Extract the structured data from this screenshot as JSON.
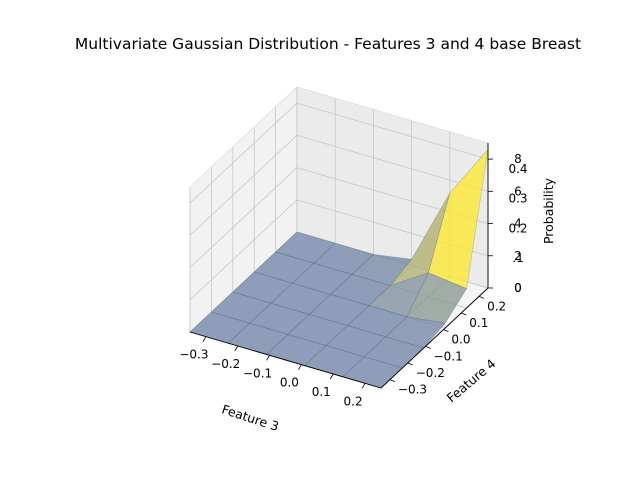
{
  "chart_data": {
    "type": "surface3d",
    "title": "Multivariate Gaussian Distribution - Features 3 and 4 base Breast",
    "xlabel": "Feature 3",
    "ylabel": "Feature 4",
    "zlabel": "Probability",
    "x_ticks": [
      "−0.3",
      "−0.2",
      "−0.1",
      "0.0",
      "0.1",
      "0.2"
    ],
    "y_ticks": [
      "−0.3",
      "−0.2",
      "−0.1",
      "0.0",
      "0.1",
      "0.2"
    ],
    "z_ticks_primary": [
      "0",
      "2",
      "4",
      "6",
      "8"
    ],
    "z_ticks_overlay": [
      "0",
      ".1",
      "0.2",
      "0.3",
      "0.4"
    ],
    "x_grid": [
      -0.35,
      -0.23,
      -0.11,
      0.01,
      0.13,
      0.25
    ],
    "y_grid": [
      -0.35,
      -0.23,
      -0.11,
      0.01,
      0.13,
      0.25
    ],
    "z_values": [
      [
        0,
        0,
        0,
        0,
        0,
        0
      ],
      [
        0,
        0,
        0,
        0,
        0,
        0
      ],
      [
        0,
        0,
        0,
        0,
        0,
        0
      ],
      [
        0,
        0,
        0,
        0,
        0,
        0.4
      ],
      [
        0,
        0,
        0,
        0,
        1.5,
        5.2
      ],
      [
        0,
        0,
        0,
        0.3,
        1.2,
        8.6
      ]
    ],
    "colors": {
      "low": "#6b7fa3",
      "high": "#fde725"
    },
    "grid": true
  }
}
